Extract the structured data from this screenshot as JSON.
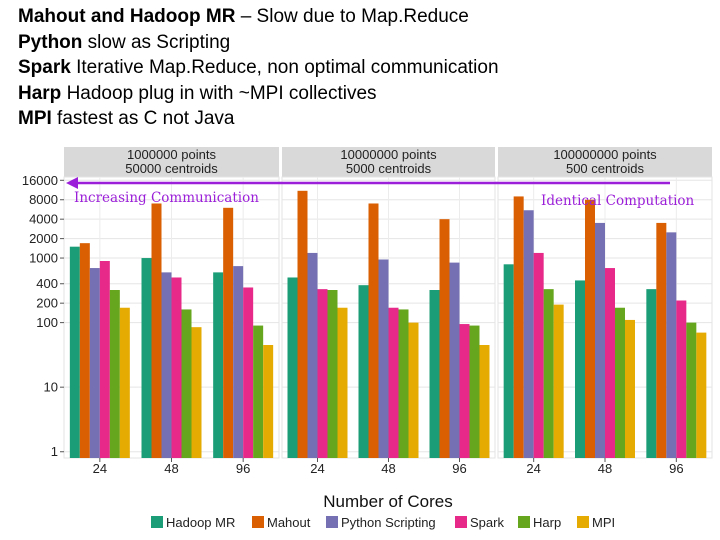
{
  "bullets": [
    {
      "bold": "Mahout and Hadoop MR",
      "rest": " – Slow due to Map.Reduce"
    },
    {
      "bold": "Python",
      "rest": " slow as Scripting"
    },
    {
      "bold": "Spark",
      "rest": " Iterative Map.Reduce, non optimal communication"
    },
    {
      "bold": "Harp",
      "rest": " Hadoop plug in with ~MPI collectives"
    },
    {
      "bold": "MPI",
      "rest": " fastest as C not Java"
    }
  ],
  "colors": {
    "Hadoop MR": "#1b9e77",
    "Mahout": "#d95f02",
    "Python Scripting": "#7570b3",
    "Spark": "#e7298a",
    "Harp": "#66a61e",
    "MPI": "#e6ab02",
    "annotation": "#9b1fd8"
  },
  "annotations": {
    "left": "Increasing Communication",
    "right": "Identical Computation"
  },
  "chart_data": {
    "type": "bar",
    "title": "",
    "xlabel": "Number of Cores",
    "ylabel": "",
    "y_scale": "log",
    "ylim": [
      0.8,
      18000
    ],
    "y_ticks": [
      1,
      10,
      100,
      200,
      400,
      1000,
      2000,
      4000,
      8000,
      16000
    ],
    "categories": [
      "24",
      "48",
      "96"
    ],
    "series_names": [
      "Hadoop MR",
      "Mahout",
      "Python Scripting",
      "Spark",
      "Harp",
      "MPI"
    ],
    "legend_position": "bottom",
    "grid": true,
    "panels": [
      {
        "label_line1": "1000000 points",
        "label_line2": "50000 centroids",
        "series": [
          {
            "name": "Hadoop MR",
            "values": [
              1500,
              1000,
              600
            ]
          },
          {
            "name": "Mahout",
            "values": [
              1700,
              7000,
              6000
            ]
          },
          {
            "name": "Python Scripting",
            "values": [
              700,
              600,
              750
            ]
          },
          {
            "name": "Spark",
            "values": [
              900,
              500,
              350
            ]
          },
          {
            "name": "Harp",
            "values": [
              320,
              160,
              90
            ]
          },
          {
            "name": "MPI",
            "values": [
              170,
              85,
              45
            ]
          }
        ]
      },
      {
        "label_line1": "10000000 points",
        "label_line2": "5000 centroids",
        "series": [
          {
            "name": "Hadoop MR",
            "values": [
              500,
              380,
              320
            ]
          },
          {
            "name": "Mahout",
            "values": [
              11000,
              7000,
              4000
            ]
          },
          {
            "name": "Python Scripting",
            "values": [
              1200,
              950,
              850
            ]
          },
          {
            "name": "Spark",
            "values": [
              330,
              170,
              95
            ]
          },
          {
            "name": "Harp",
            "values": [
              320,
              160,
              90
            ]
          },
          {
            "name": "MPI",
            "values": [
              170,
              100,
              45
            ]
          }
        ]
      },
      {
        "label_line1": "100000000 points",
        "label_line2": "500 centroids",
        "series": [
          {
            "name": "Hadoop MR",
            "values": [
              800,
              450,
              330
            ]
          },
          {
            "name": "Mahout",
            "values": [
              9000,
              8000,
              3500
            ]
          },
          {
            "name": "Python Scripting",
            "values": [
              5500,
              3500,
              2500
            ]
          },
          {
            "name": "Spark",
            "values": [
              1200,
              700,
              220
            ]
          },
          {
            "name": "Harp",
            "values": [
              330,
              170,
              100
            ]
          },
          {
            "name": "MPI",
            "values": [
              190,
              110,
              70
            ]
          }
        ]
      }
    ]
  }
}
